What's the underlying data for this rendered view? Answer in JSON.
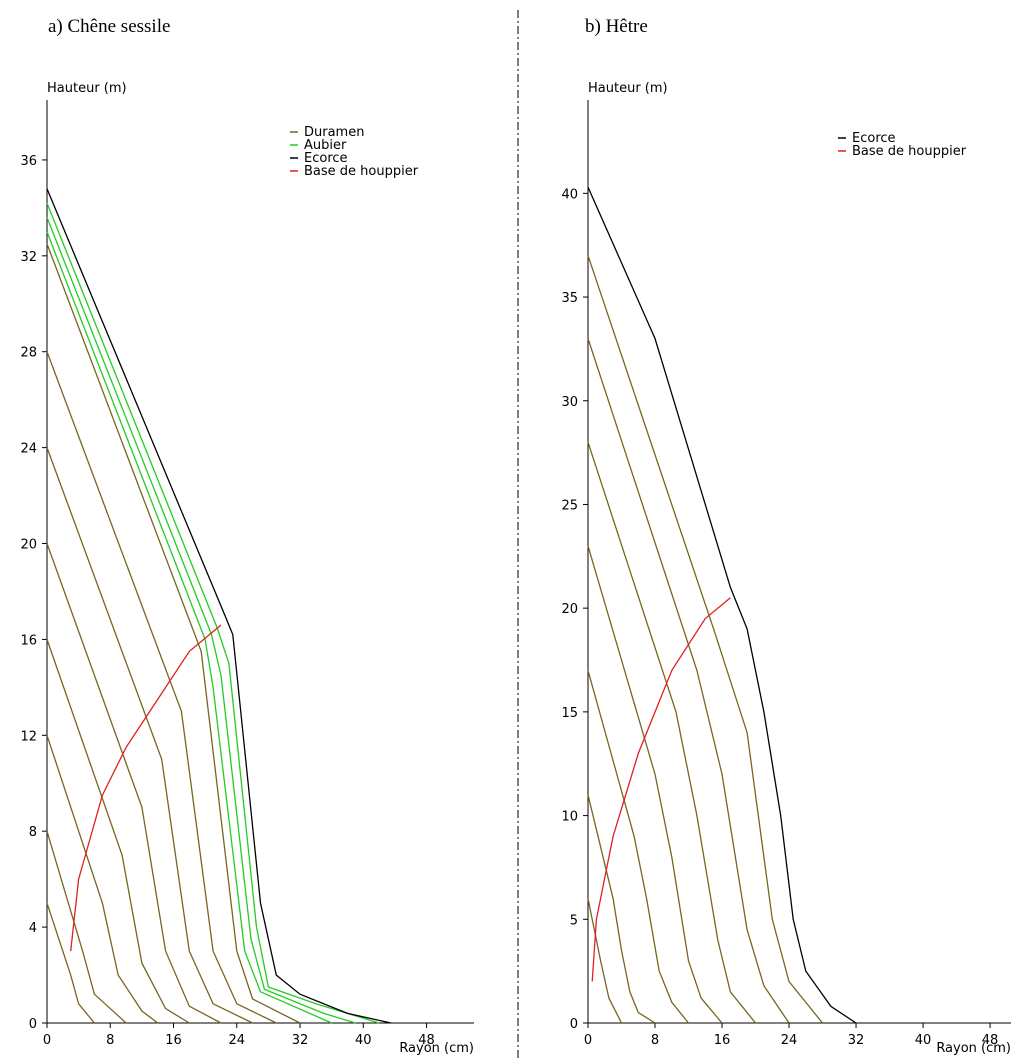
{
  "chart_data": [
    {
      "type": "line",
      "title": "a) Chêne sessile",
      "y_label": "Hauteur (m)",
      "x_label": "Rayon (cm)",
      "xlim": [
        0,
        54
      ],
      "ylim": [
        0,
        38.5
      ],
      "xticks": [
        0,
        8,
        16,
        24,
        32,
        40,
        48
      ],
      "yticks": [
        0,
        4,
        8,
        12,
        16,
        20,
        24,
        28,
        32,
        36
      ],
      "series": [
        {
          "name": "Duramen",
          "color": "#7a6420",
          "lines": [
            {
              "x": [
                0,
                19.5,
                24,
                26,
                32
              ],
              "y": [
                32.5,
                15.5,
                3,
                1,
                0
              ]
            },
            {
              "x": [
                0,
                17,
                21,
                24,
                29
              ],
              "y": [
                28,
                13,
                3,
                0.8,
                0
              ]
            },
            {
              "x": [
                0,
                14.5,
                18,
                21,
                26
              ],
              "y": [
                24,
                11,
                3,
                0.8,
                0
              ]
            },
            {
              "x": [
                0,
                12,
                15,
                18,
                22
              ],
              "y": [
                20,
                9,
                3,
                0.7,
                0
              ]
            },
            {
              "x": [
                0,
                9.5,
                12,
                15,
                18
              ],
              "y": [
                16,
                7,
                2.5,
                0.6,
                0
              ]
            },
            {
              "x": [
                0,
                7,
                9,
                12,
                14
              ],
              "y": [
                12,
                5,
                2,
                0.5,
                0
              ]
            },
            {
              "x": [
                0,
                4.5,
                6,
                9,
                10
              ],
              "y": [
                8,
                3,
                1.2,
                0.3,
                0
              ]
            },
            {
              "x": [
                0,
                3,
                4,
                6
              ],
              "y": [
                5,
                2,
                0.8,
                0
              ]
            }
          ]
        },
        {
          "name": "Aubier",
          "color": "#22cc22",
          "lines": [
            {
              "x": [
                0,
                21.5,
                23,
                26.5,
                28,
                34,
                42
              ],
              "y": [
                34.2,
                16.5,
                15,
                4,
                1.5,
                0.8,
                0
              ]
            },
            {
              "x": [
                0,
                20.8,
                22,
                25.8,
                27.5,
                35,
                39
              ],
              "y": [
                33.6,
                16.2,
                14.5,
                3.5,
                1.4,
                0.4,
                0
              ]
            },
            {
              "x": [
                0,
                20,
                21,
                25,
                27,
                36
              ],
              "y": [
                33,
                16,
                14,
                3,
                1.3,
                0
              ]
            }
          ]
        },
        {
          "name": "Ecorce",
          "color": "#000000",
          "lines": [
            {
              "x": [
                0,
                22.5,
                23.5,
                27,
                29,
                32,
                38,
                43.5
              ],
              "y": [
                34.8,
                17,
                16.2,
                5,
                2,
                1.2,
                0.4,
                0
              ]
            }
          ]
        },
        {
          "name": "Base de houppier",
          "color": "#e02020",
          "lines": [
            {
              "x": [
                3,
                4,
                7,
                10,
                14,
                18,
                22
              ],
              "y": [
                3,
                6,
                9.5,
                11.5,
                13.5,
                15.5,
                16.6
              ]
            }
          ]
        }
      ]
    },
    {
      "type": "line",
      "title": "b) Hêtre",
      "y_label": "Hauteur (m)",
      "x_label": "Rayon (cm)",
      "xlim": [
        0,
        50.5
      ],
      "ylim": [
        0,
        44.5
      ],
      "xticks": [
        0,
        8,
        16,
        24,
        32,
        40,
        48
      ],
      "yticks": [
        0,
        5,
        10,
        15,
        20,
        25,
        30,
        35,
        40
      ],
      "series": [
        {
          "color": "#7a6420",
          "lines": [
            {
              "x": [
                0,
                15,
                19,
                22,
                24,
                28
              ],
              "y": [
                37,
                19,
                14,
                5,
                2,
                0
              ]
            },
            {
              "x": [
                0,
                13,
                16,
                19,
                21,
                24
              ],
              "y": [
                33,
                17,
                12,
                4.5,
                1.8,
                0
              ]
            },
            {
              "x": [
                0,
                10.5,
                13,
                15.5,
                17,
                20
              ],
              "y": [
                28,
                15,
                10,
                4,
                1.5,
                0
              ]
            },
            {
              "x": [
                0,
                8,
                10,
                12,
                13.5,
                16
              ],
              "y": [
                23,
                12,
                8,
                3,
                1.2,
                0
              ]
            },
            {
              "x": [
                0,
                5.5,
                7,
                8.5,
                10,
                12
              ],
              "y": [
                17,
                9,
                6,
                2.5,
                1,
                0
              ]
            },
            {
              "x": [
                0,
                3,
                4,
                5,
                6,
                8
              ],
              "y": [
                11,
                6,
                3.5,
                1.5,
                0.5,
                0
              ]
            },
            {
              "x": [
                0,
                1.5,
                2.5,
                4
              ],
              "y": [
                6,
                3,
                1.2,
                0
              ]
            }
          ]
        },
        {
          "name": "Ecorce",
          "color": "#000000",
          "lines": [
            {
              "x": [
                0,
                8,
                17,
                19,
                21,
                23,
                24.5,
                26,
                29,
                32
              ],
              "y": [
                40.3,
                33,
                21,
                19,
                15,
                10,
                5,
                2.5,
                0.8,
                0
              ]
            }
          ]
        },
        {
          "name": "Base de houppier",
          "color": "#e02020",
          "lines": [
            {
              "x": [
                0.5,
                1,
                3,
                6,
                10,
                14,
                17
              ],
              "y": [
                2,
                5,
                9,
                13,
                17,
                19.5,
                20.5
              ]
            }
          ]
        }
      ]
    }
  ]
}
